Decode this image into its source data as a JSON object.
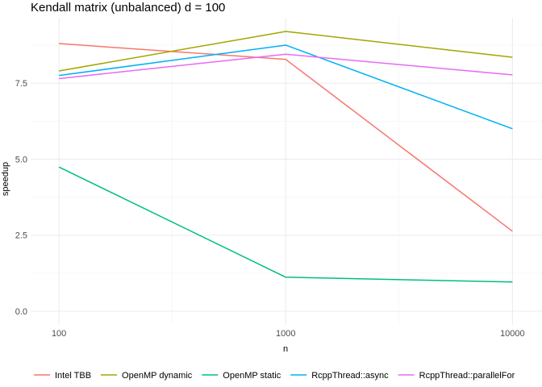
{
  "chart_data": {
    "type": "line",
    "title": "Kendall matrix (unbalanced) d = 100",
    "xlabel": "n",
    "ylabel": "speedup",
    "x_scale": "log10",
    "x": [
      100,
      1000,
      10000
    ],
    "x_tick_labels": [
      "100",
      "1000",
      "10000"
    ],
    "y_tick_labels": [
      "0.0",
      "2.5",
      "5.0",
      "7.5"
    ],
    "y_ticks": [
      0,
      2.5,
      5,
      7.5
    ],
    "xlim": [
      75,
      13500
    ],
    "ylim": [
      -0.45,
      9.65
    ],
    "grid": true,
    "legend_position": "bottom",
    "series": [
      {
        "name": "Intel TBB",
        "color": "#F8766D",
        "values": [
          8.8,
          8.28,
          2.63
        ]
      },
      {
        "name": "OpenMP dynamic",
        "color": "#A3A500",
        "values": [
          7.9,
          9.2,
          8.35
        ]
      },
      {
        "name": "OpenMP static",
        "color": "#00BF7D",
        "values": [
          4.74,
          1.12,
          0.96
        ]
      },
      {
        "name": "RcppThread::async",
        "color": "#00B0F6",
        "values": [
          7.75,
          8.75,
          6.0
        ]
      },
      {
        "name": "RcppThread::parallelFor",
        "color": "#E76BF3",
        "values": [
          7.65,
          8.45,
          7.77
        ]
      }
    ]
  }
}
